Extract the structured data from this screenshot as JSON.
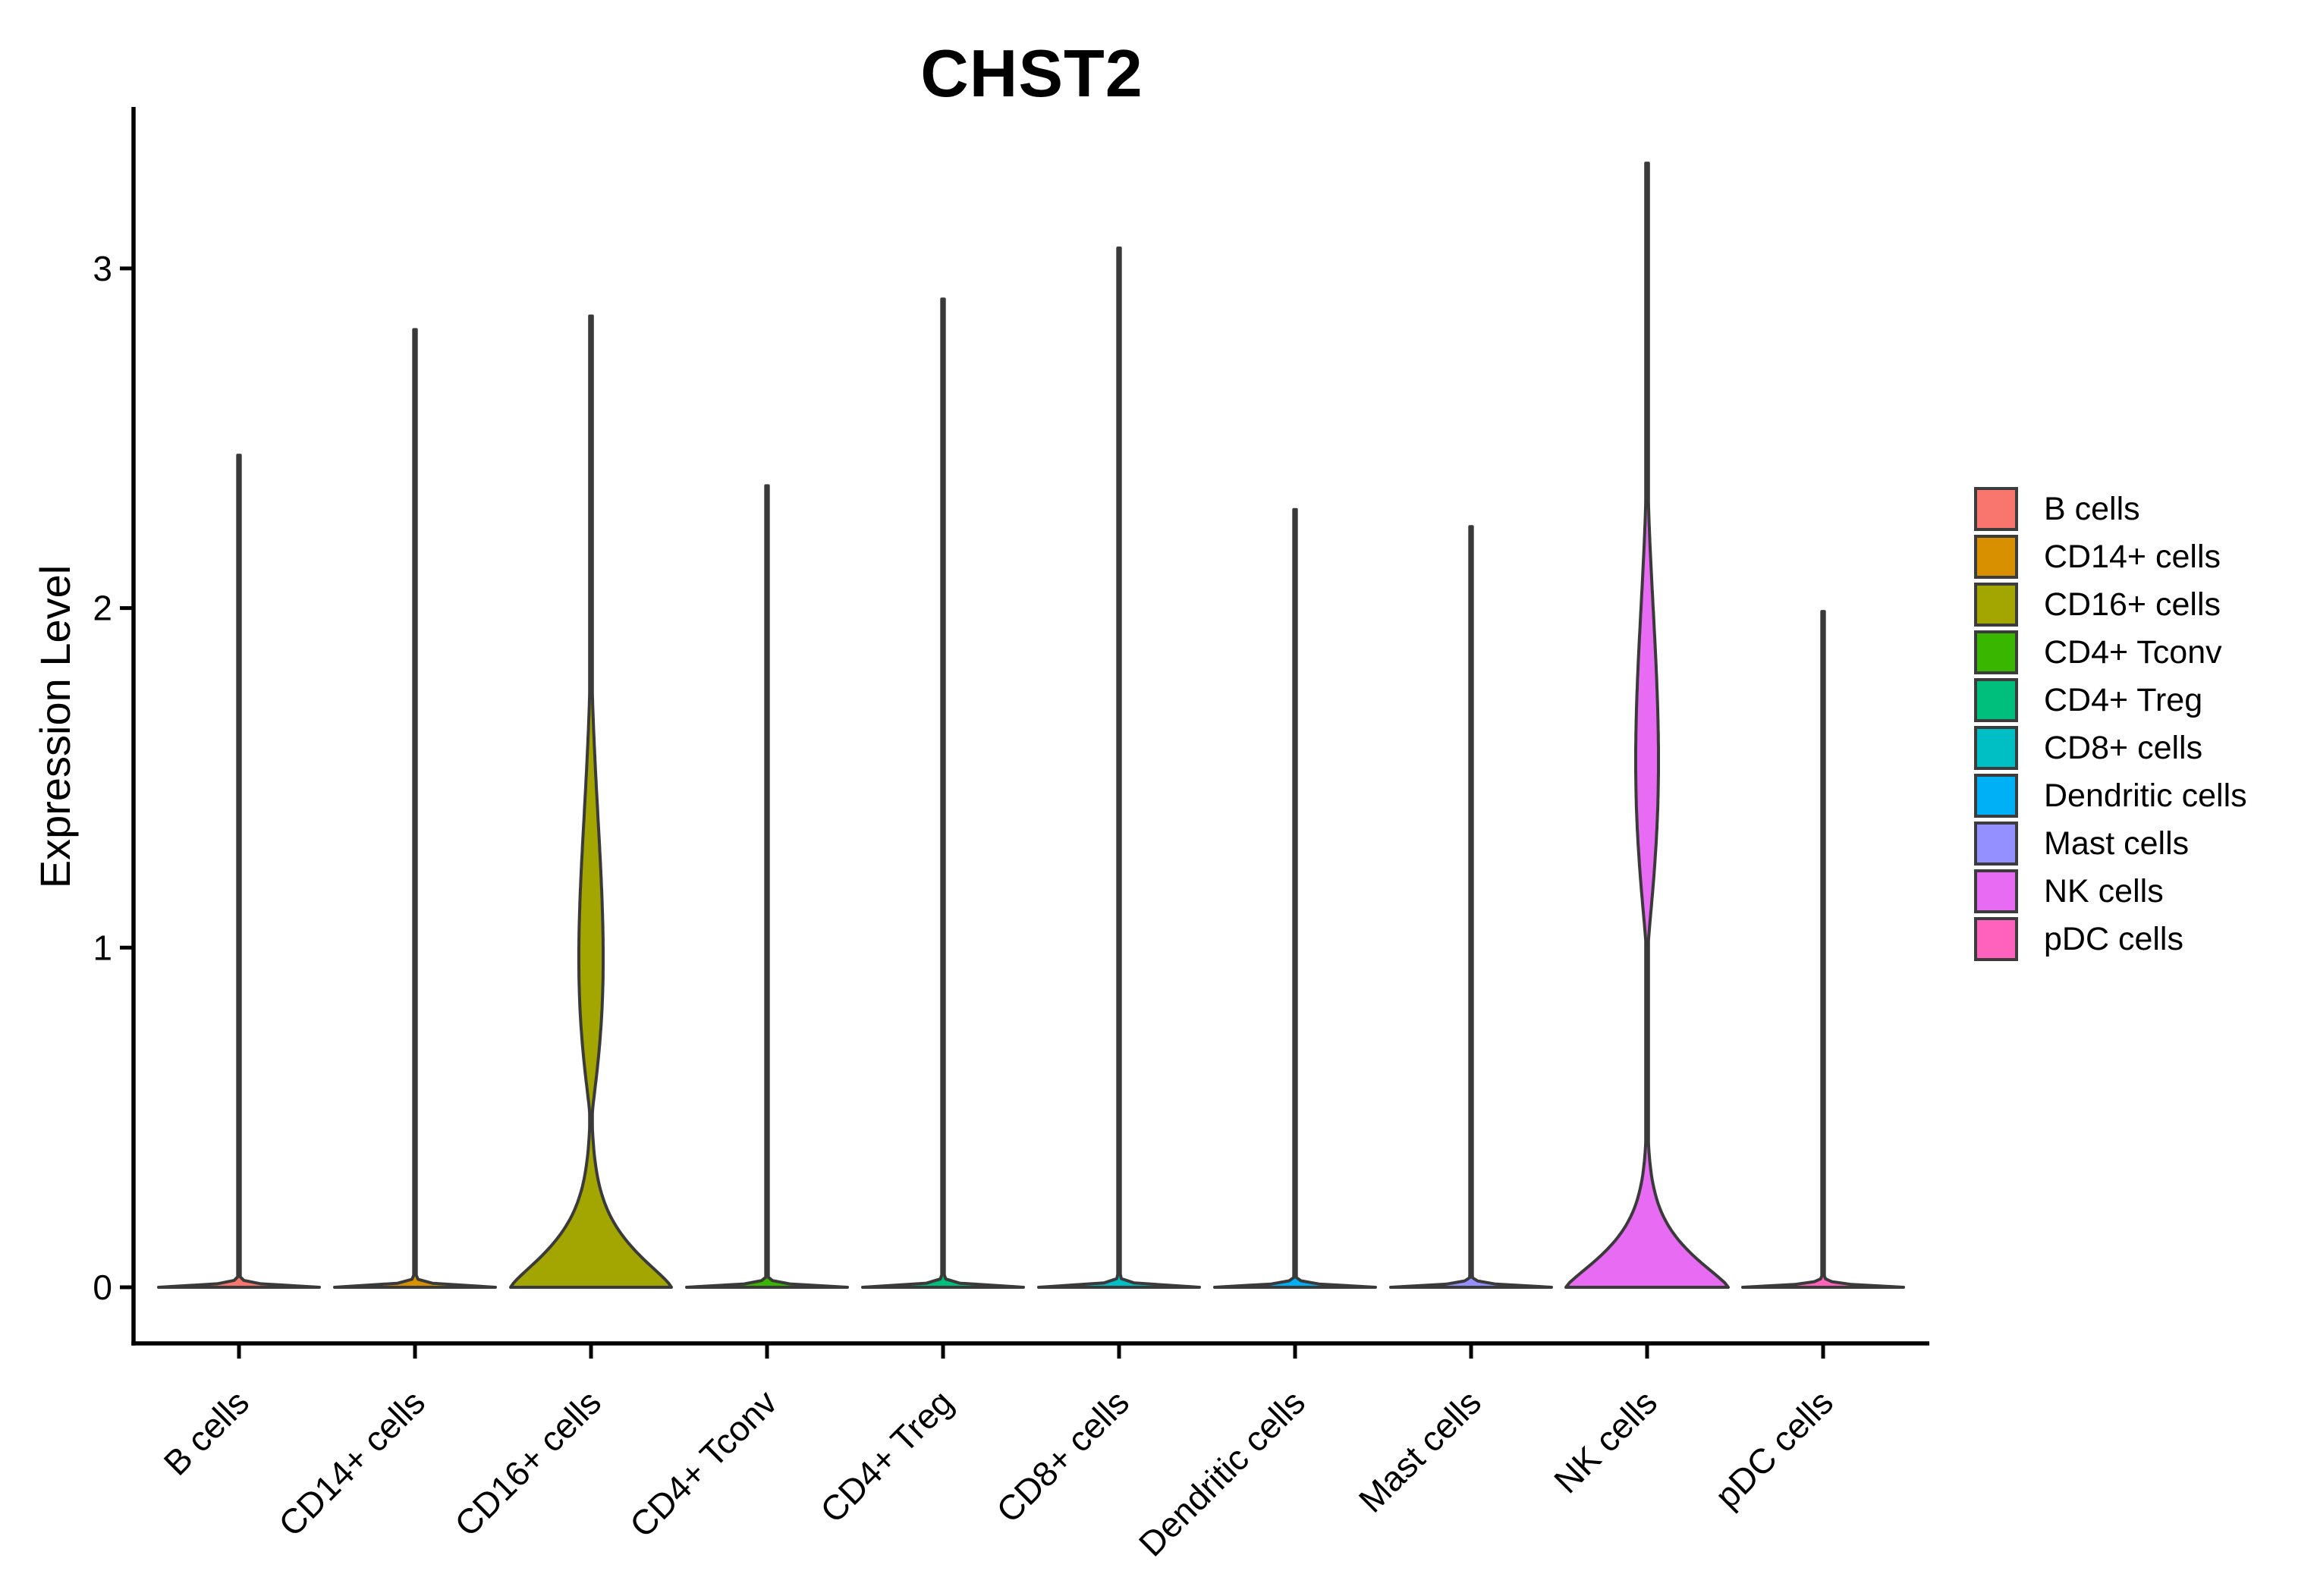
{
  "title": "CHST2",
  "y_axis": {
    "label": "Expression Level",
    "ticks": [
      {
        "label": "0",
        "value": 0
      },
      {
        "label": "1",
        "value": 1
      },
      {
        "label": "2",
        "value": 2
      },
      {
        "label": "3",
        "value": 3
      }
    ]
  },
  "legend": {
    "entries": [
      {
        "label": "B cells",
        "color": "#F8766D"
      },
      {
        "label": "CD14+ cells",
        "color": "#D89000"
      },
      {
        "label": "CD16+ cells",
        "color": "#A3A500"
      },
      {
        "label": "CD4+ Tconv",
        "color": "#39B600"
      },
      {
        "label": "CD4+ Treg",
        "color": "#00BF7D"
      },
      {
        "label": "CD8+ cells",
        "color": "#00BFC4"
      },
      {
        "label": "Dendritic cells",
        "color": "#00B0F6"
      },
      {
        "label": "Mast cells",
        "color": "#9590FF"
      },
      {
        "label": "NK cells",
        "color": "#E76BF3"
      },
      {
        "label": "pDC cells",
        "color": "#FF62BC"
      }
    ]
  },
  "chart_data": {
    "type": "violin",
    "title": "CHST2",
    "xlabel": "",
    "ylabel": "Expression Level",
    "ylim": [
      0,
      3.47
    ],
    "yticks": [
      0,
      1,
      2,
      3
    ],
    "grid": false,
    "legend_position": "right",
    "outline_color": "#3A3A3A",
    "categories": [
      "B cells",
      "CD14+ cells",
      "CD16+ cells",
      "CD4+ Tconv",
      "CD4+ Treg",
      "CD8+ cells",
      "Dendritic cells",
      "Mast cells",
      "NK cells",
      "pDC cells"
    ],
    "series": [
      {
        "name": "B cells",
        "color": "#F8766D",
        "max_expression": 2.45,
        "mode_at_zero": true,
        "density_bulge": null,
        "violin": {
          "base_hw": 106,
          "base_sigma": 0.008,
          "base_power": 1.1,
          "spike_hw": 1.7,
          "bulge": null
        }
      },
      {
        "name": "CD14+ cells",
        "color": "#D89000",
        "max_expression": 2.82,
        "mode_at_zero": true,
        "density_bulge": null,
        "violin": {
          "base_hw": 106,
          "base_sigma": 0.008,
          "base_power": 1.1,
          "spike_hw": 1.7,
          "bulge": null
        }
      },
      {
        "name": "CD16+ cells",
        "color": "#A3A500",
        "max_expression": 2.86,
        "mode_at_zero": true,
        "density_bulge": {
          "center": 0.97,
          "range": [
            0.55,
            2.0
          ]
        },
        "violin": {
          "base_hw": 106,
          "base_sigma": 0.16,
          "base_power": 1.3,
          "spike_hw": 1.8,
          "bulge": {
            "scale": 190,
            "a": 1.2,
            "b": 2.88,
            "v0": 0.5,
            "span": 1.6
          }
        }
      },
      {
        "name": "CD4+ Tconv",
        "color": "#39B600",
        "max_expression": 2.36,
        "mode_at_zero": true,
        "density_bulge": null,
        "violin": {
          "base_hw": 106,
          "base_sigma": 0.008,
          "base_power": 1.1,
          "spike_hw": 1.7,
          "bulge": null
        }
      },
      {
        "name": "CD4+ Treg",
        "color": "#00BF7D",
        "max_expression": 2.91,
        "mode_at_zero": true,
        "density_bulge": null,
        "violin": {
          "base_hw": 106,
          "base_sigma": 0.008,
          "base_power": 1.1,
          "spike_hw": 1.7,
          "bulge": null
        }
      },
      {
        "name": "CD8+ cells",
        "color": "#00BFC4",
        "max_expression": 3.06,
        "mode_at_zero": true,
        "density_bulge": null,
        "violin": {
          "base_hw": 106,
          "base_sigma": 0.008,
          "base_power": 1.1,
          "spike_hw": 1.7,
          "bulge": null
        }
      },
      {
        "name": "Dendritic cells",
        "color": "#00B0F6",
        "max_expression": 2.29,
        "mode_at_zero": true,
        "density_bulge": null,
        "violin": {
          "base_hw": 106,
          "base_sigma": 0.008,
          "base_power": 1.1,
          "spike_hw": 1.7,
          "bulge": null
        }
      },
      {
        "name": "Mast cells",
        "color": "#9590FF",
        "max_expression": 2.24,
        "mode_at_zero": true,
        "density_bulge": null,
        "violin": {
          "base_hw": 106,
          "base_sigma": 0.008,
          "base_power": 1.1,
          "spike_hw": 1.7,
          "bulge": null
        }
      },
      {
        "name": "NK cells",
        "color": "#E76BF3",
        "max_expression": 3.31,
        "mode_at_zero": true,
        "density_bulge": {
          "center": 1.55,
          "range": [
            1.0,
            2.5
          ]
        },
        "violin": {
          "base_hw": 107,
          "base_sigma": 0.145,
          "base_power": 1.3,
          "spike_hw": 1.8,
          "bulge": {
            "scale": 224,
            "a": 1.5,
            "b": 2.62,
            "v0": 0.95,
            "span": 1.65
          }
        }
      },
      {
        "name": "pDC cells",
        "color": "#FF62BC",
        "max_expression": 1.99,
        "mode_at_zero": true,
        "density_bulge": null,
        "violin": {
          "base_hw": 106,
          "base_sigma": 0.008,
          "base_power": 1.1,
          "spike_hw": 1.7,
          "bulge": null
        }
      }
    ]
  }
}
